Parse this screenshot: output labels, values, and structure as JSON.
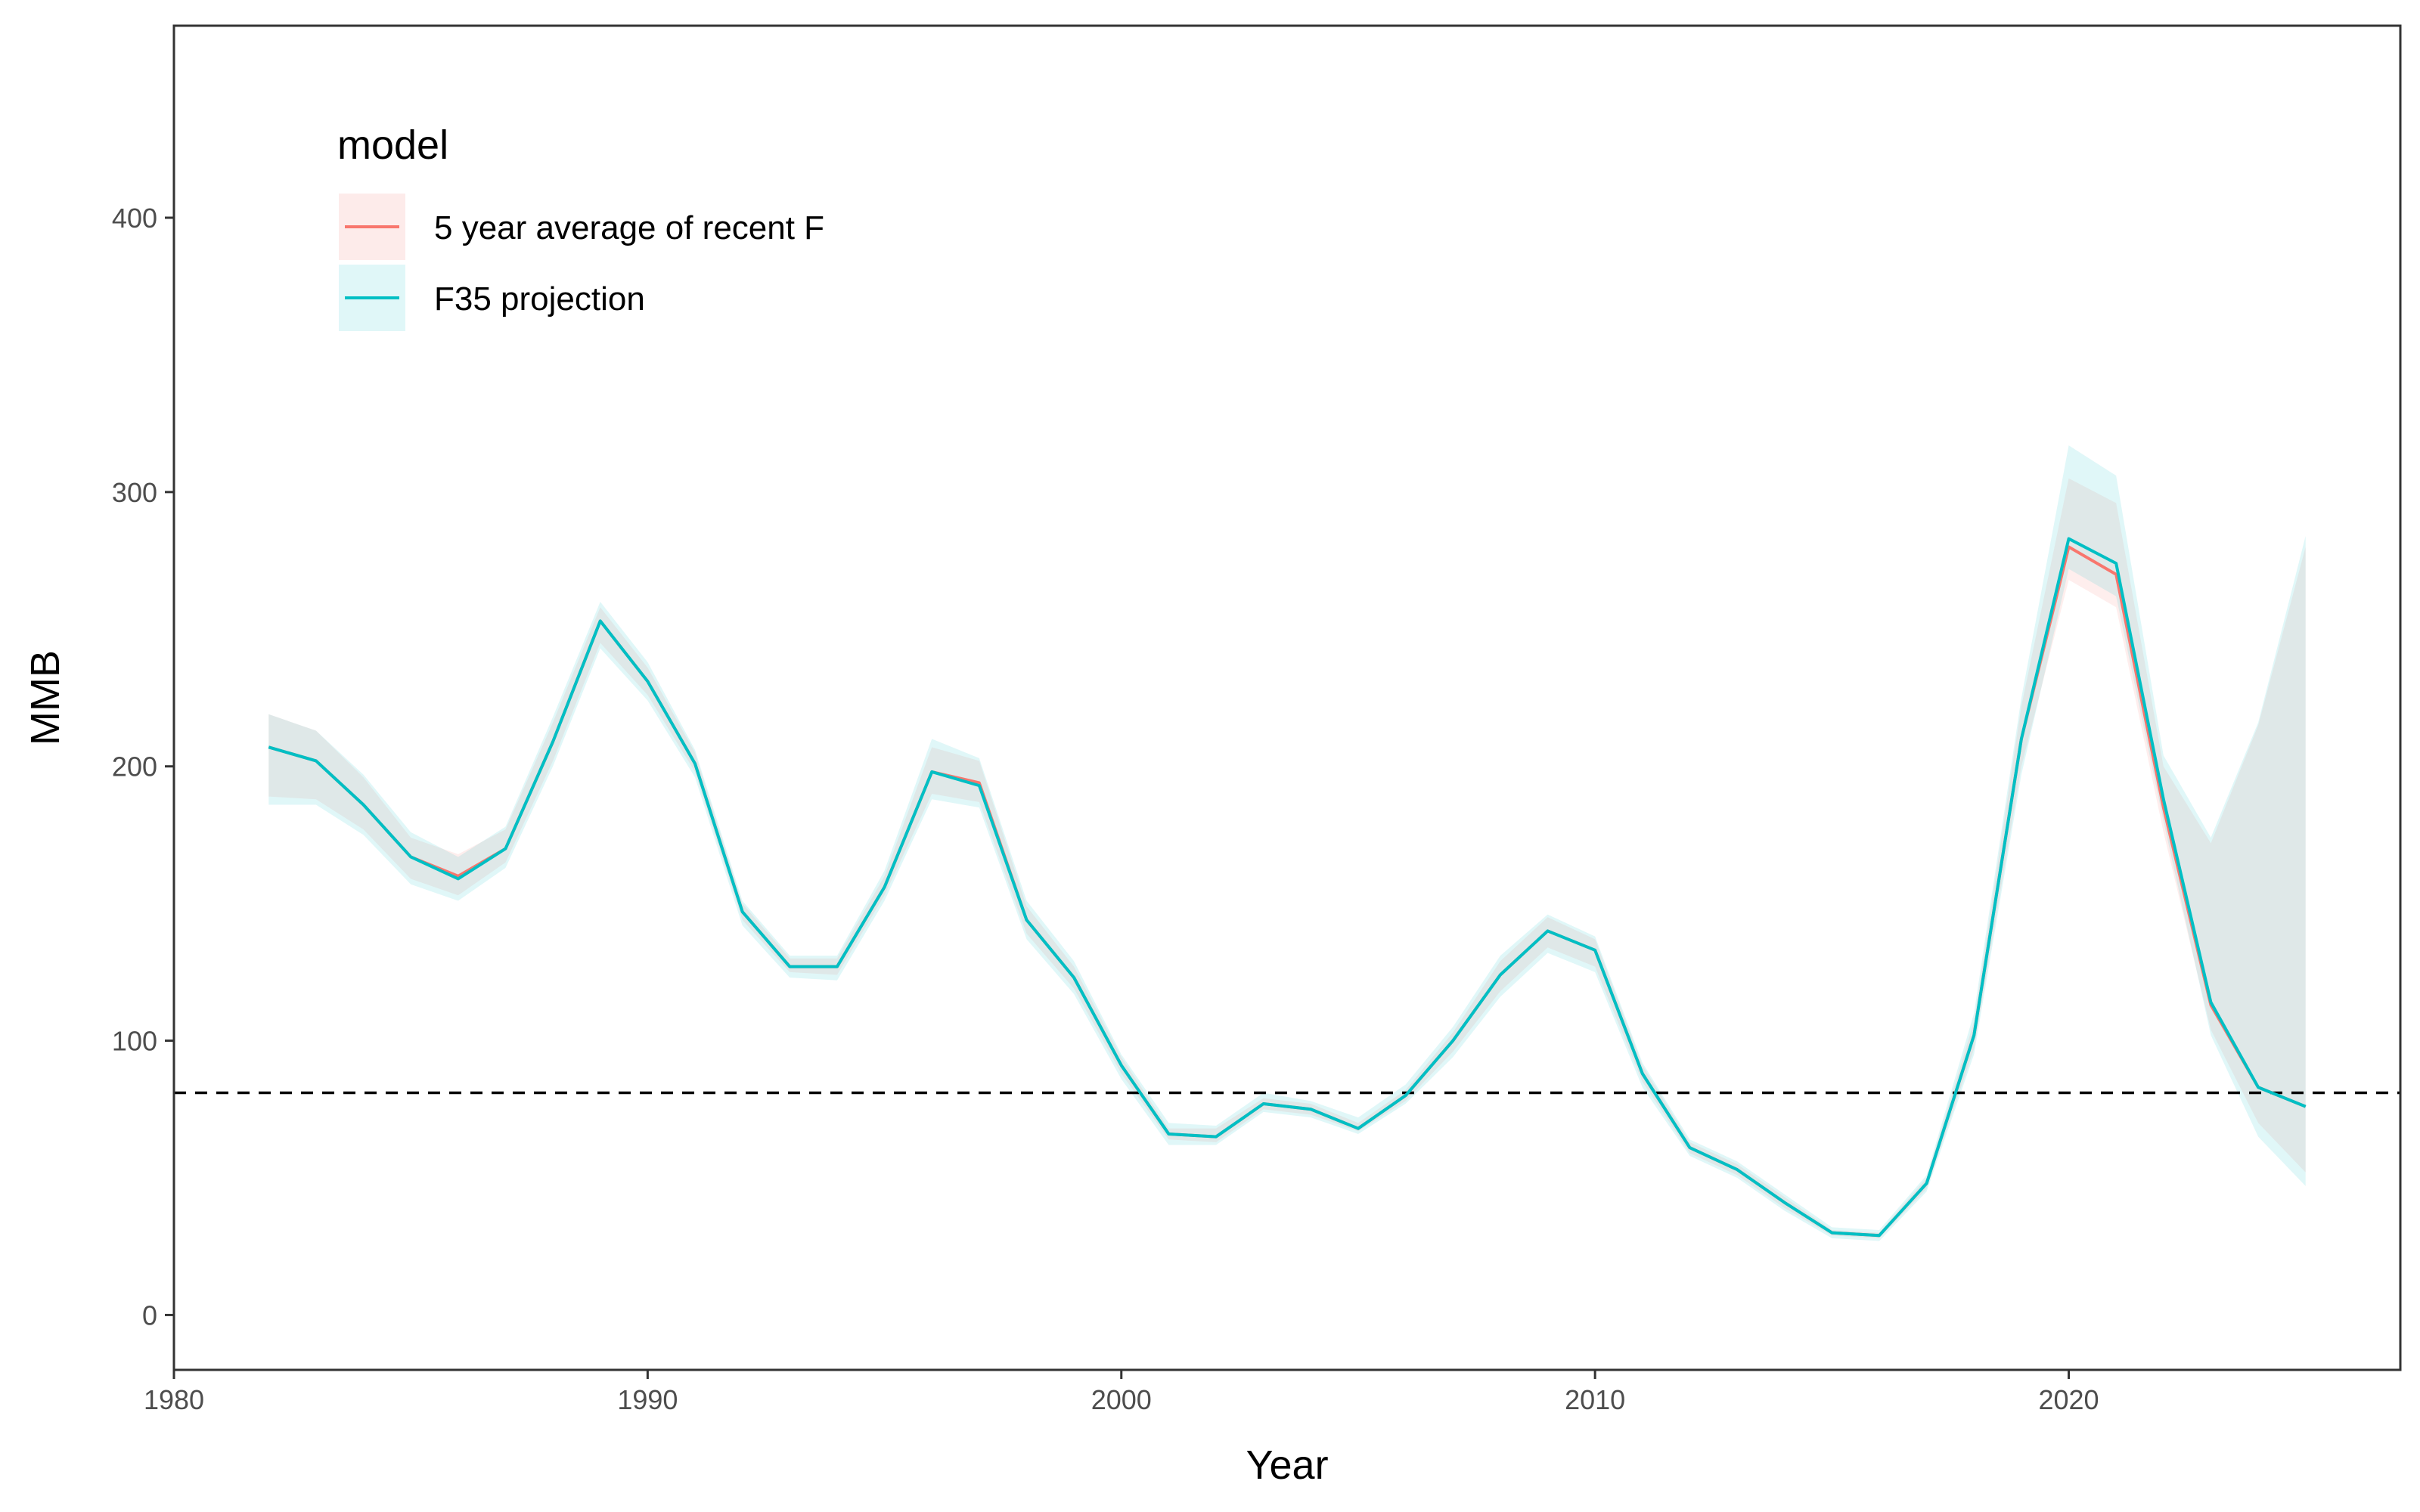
{
  "chart_data": {
    "type": "line",
    "xlabel": "Year",
    "ylabel": "MMB",
    "xlim": [
      1980,
      2027
    ],
    "ylim": [
      -20,
      470
    ],
    "x_ticks": [
      1980,
      1990,
      2000,
      2010,
      2020
    ],
    "y_ticks": [
      0,
      100,
      200,
      300,
      400
    ],
    "grid": false,
    "reference_line": {
      "y": 81,
      "style": "dashed",
      "color": "#000000"
    },
    "legend": {
      "title": "model",
      "placement": "top-left",
      "entries": [
        {
          "label": "5 year average of recent F",
          "color": "#F8766D",
          "fill": "#FDEBEA"
        },
        {
          "label": "F35 projection",
          "color": "#00BFC4",
          "fill": "#E0F7F8"
        }
      ]
    },
    "x": [
      1982,
      1983,
      1984,
      1985,
      1986,
      1987,
      1988,
      1989,
      1990,
      1991,
      1992,
      1993,
      1994,
      1995,
      1996,
      1997,
      1998,
      1999,
      2000,
      2001,
      2002,
      2003,
      2004,
      2005,
      2006,
      2007,
      2008,
      2009,
      2010,
      2011,
      2012,
      2013,
      2014,
      2015,
      2016,
      2017,
      2018,
      2019,
      2020,
      2021,
      2022,
      2023,
      2024,
      2025
    ],
    "series": [
      {
        "name": "5 year average of recent F",
        "color": "#F8766D",
        "values": [
          207,
          202,
          186,
          167,
          160,
          170,
          209,
          253,
          231,
          201,
          147,
          127,
          127,
          156,
          198,
          194,
          144,
          123,
          91,
          66,
          65,
          77,
          75,
          68,
          80,
          100,
          124,
          140,
          133,
          88,
          61,
          53,
          41,
          30,
          29,
          48,
          102,
          210,
          280,
          270,
          185,
          113,
          83,
          76
        ],
        "lower": [
          189,
          188,
          177,
          159,
          153,
          165,
          202,
          245,
          226,
          198,
          144,
          125,
          124,
          153,
          190,
          187,
          139,
          119,
          88,
          64,
          63,
          75,
          73,
          67,
          78,
          96,
          118,
          134,
          127,
          85,
          59,
          51,
          39,
          29,
          28,
          46,
          97,
          200,
          268,
          258,
          176,
          104,
          70,
          52
        ],
        "upper": [
          219,
          213,
          196,
          174,
          168,
          177,
          216,
          258,
          236,
          205,
          150,
          130,
          130,
          160,
          207,
          202,
          149,
          127,
          94,
          68,
          68,
          79,
          77,
          70,
          82,
          103,
          129,
          145,
          137,
          91,
          63,
          55,
          43,
          31,
          30,
          50,
          107,
          222,
          305,
          296,
          200,
          172,
          215,
          280
        ]
      },
      {
        "name": "F35 projection",
        "color": "#00BFC4",
        "values": [
          207,
          202,
          186,
          167,
          159,
          170,
          209,
          253,
          231,
          201,
          147,
          127,
          127,
          156,
          198,
          193,
          144,
          123,
          91,
          66,
          65,
          77,
          75,
          68,
          80,
          100,
          124,
          140,
          133,
          88,
          61,
          53,
          41,
          30,
          29,
          48,
          102,
          210,
          283,
          274,
          188,
          114,
          83,
          76
        ],
        "lower": [
          186,
          186,
          175,
          157,
          151,
          163,
          200,
          243,
          224,
          196,
          142,
          123,
          122,
          151,
          188,
          185,
          137,
          117,
          86,
          62,
          62,
          74,
          72,
          66,
          77,
          94,
          116,
          132,
          125,
          83,
          58,
          50,
          38,
          28,
          27,
          45,
          95,
          197,
          272,
          262,
          180,
          102,
          65,
          47
        ],
        "upper": [
          219,
          213,
          197,
          176,
          167,
          178,
          218,
          260,
          238,
          206,
          151,
          131,
          131,
          162,
          210,
          203,
          151,
          129,
          95,
          70,
          69,
          81,
          78,
          72,
          84,
          105,
          131,
          146,
          138,
          92,
          64,
          56,
          44,
          32,
          31,
          51,
          110,
          225,
          317,
          306,
          204,
          174,
          216,
          284
        ]
      }
    ]
  }
}
